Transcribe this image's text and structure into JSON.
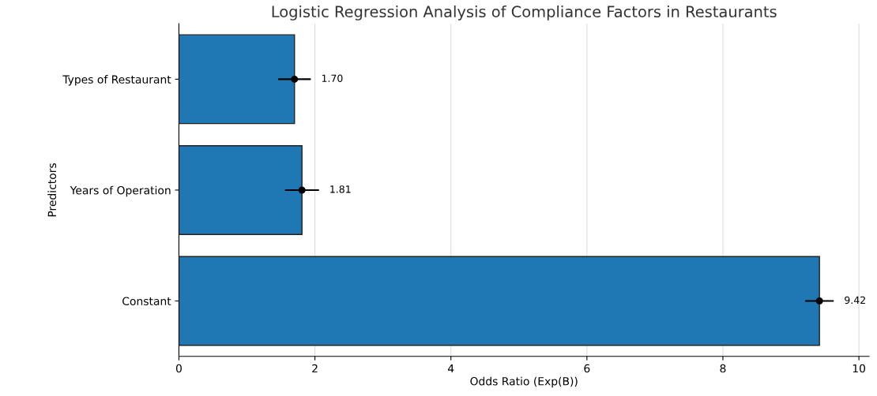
{
  "chart_data": {
    "type": "bar",
    "orientation": "horizontal",
    "title": "Logistic Regression Analysis of Compliance Factors in Restaurants",
    "xlabel": "Odds Ratio (Exp(B))",
    "ylabel": "Predictors",
    "categories": [
      "Types of Restaurant",
      "Years of Operation",
      "Constant"
    ],
    "series": [
      {
        "color": "#1f77b4",
        "values": [
          1.7,
          1.81,
          9.42
        ],
        "errors": [
          0.24,
          0.25,
          0.21
        ],
        "value_labels": [
          "1.70",
          "1.81",
          "9.42"
        ]
      },
      {
        "type": "scatter",
        "color": "#000000",
        "marker": "circle",
        "values": [
          1.7,
          1.81,
          9.42
        ]
      }
    ],
    "xlim": [
      0,
      10.15
    ],
    "xticks": [
      0,
      2,
      4,
      6,
      8,
      10
    ],
    "grid": "x"
  }
}
